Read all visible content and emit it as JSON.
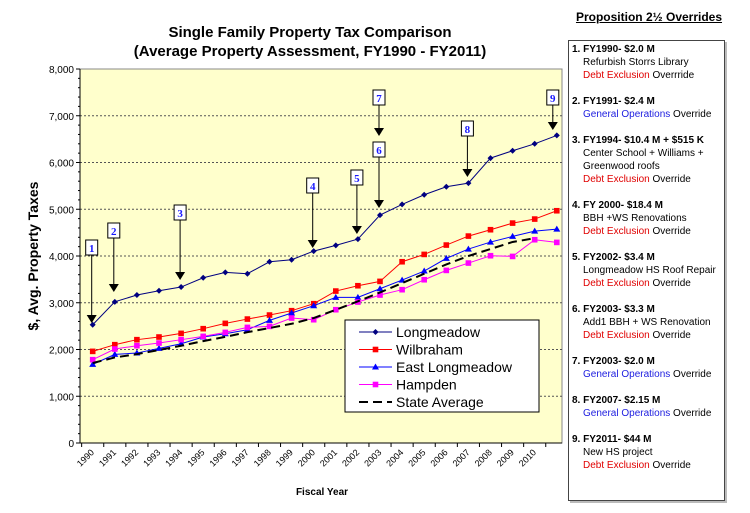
{
  "chart_data": {
    "type": "line",
    "title": "Single Family Property Tax Comparison",
    "subtitle": "(Average Property Assessment, FY1990 - FY2011)",
    "xlabel": "Fiscal Year",
    "ylabel": "$, Avg. Property Taxes",
    "ylim": [
      0,
      8000
    ],
    "yticks": [
      0,
      1000,
      2000,
      3000,
      4000,
      5000,
      6000,
      7000,
      8000
    ],
    "ytick_labels": [
      "0",
      "1,000",
      "2,000",
      "3,000",
      "4,000",
      "5,000",
      "6,000",
      "7,000",
      "8,000"
    ],
    "x": [
      1990,
      1991,
      1992,
      1993,
      1994,
      1995,
      1996,
      1997,
      1998,
      1999,
      2000,
      2001,
      2002,
      2003,
      2004,
      2005,
      2006,
      2007,
      2008,
      2009,
      2010,
      2011
    ],
    "xtick_labels": [
      "1990",
      "1991",
      "1992",
      "1993",
      "1994",
      "1995",
      "1996",
      "1997",
      "1998",
      "1999",
      "2000",
      "2001",
      "2002",
      "2003",
      "2004",
      "2005",
      "2006",
      "2007",
      "2008",
      "2009",
      "2010"
    ],
    "grid": "horizontal dotted",
    "legend_position": "bottom-right",
    "background_color": "#ffffcc",
    "series": [
      {
        "name": "Longmeadow",
        "color": "#000080",
        "marker": "diamond",
        "values": [
          2530,
          3020,
          3165,
          3257,
          3336,
          3535,
          3649,
          3621,
          3877,
          3920,
          4105,
          4227,
          4362,
          4875,
          5103,
          5310,
          5481,
          5559,
          6094,
          6251,
          6400,
          6579
        ]
      },
      {
        "name": "Wilbraham",
        "color": "#ff0000",
        "marker": "square",
        "values": [
          1960,
          2103,
          2210,
          2267,
          2345,
          2445,
          2559,
          2651,
          2737,
          2830,
          2980,
          3250,
          3364,
          3457,
          3877,
          4034,
          4234,
          4426,
          4562,
          4704,
          4790,
          4968
        ]
      },
      {
        "name": "East Longmeadow",
        "color": "#0000ff",
        "marker": "triangle",
        "values": [
          1682,
          1896,
          1924,
          2024,
          2124,
          2267,
          2338,
          2423,
          2623,
          2780,
          2937,
          3115,
          3115,
          3300,
          3485,
          3678,
          3949,
          4148,
          4298,
          4419,
          4533,
          4576
        ]
      },
      {
        "name": "Hampden",
        "color": "#ff00ff",
        "marker": "square",
        "values": [
          1782,
          2010,
          2081,
          2138,
          2210,
          2281,
          2366,
          2473,
          2495,
          2673,
          2637,
          2851,
          3015,
          3165,
          3279,
          3492,
          3692,
          3849,
          4006,
          3991,
          4348,
          4291
        ]
      },
      {
        "name": "State Average",
        "color": "#000000",
        "marker": "none",
        "dashed": true,
        "values": [
          1711,
          1830,
          1900,
          1990,
          2080,
          2180,
          2270,
          2370,
          2460,
          2550,
          2673,
          2850,
          3030,
          3220,
          3420,
          3620,
          3820,
          4000,
          4150,
          4300,
          4380,
          null
        ]
      }
    ],
    "annotations": [
      {
        "label": "1",
        "year": 1990
      },
      {
        "label": "2",
        "year": 1991
      },
      {
        "label": "3",
        "year": 1994
      },
      {
        "label": "4",
        "year": 2000
      },
      {
        "label": "5",
        "year": 2002
      },
      {
        "label": "6",
        "year": 2003
      },
      {
        "label": "7",
        "year": 2003
      },
      {
        "label": "8",
        "year": 2007
      },
      {
        "label": "9",
        "year": 2011
      }
    ]
  },
  "panel": {
    "title": "Proposition 2½ Overrides",
    "items": [
      {
        "head": "1. FY1990- $2.0 M",
        "lines": [
          "Refurbish Storrs Library"
        ],
        "type": "Debt Exclusion",
        "suffix": " Overrride",
        "color": "red"
      },
      {
        "head": "2. FY1991- $2.4 M",
        "lines": [],
        "type": "General Operations",
        "suffix": " Override",
        "color": "blue"
      },
      {
        "head": "3. FY1994- $10.4 M + $515 K",
        "lines": [
          "Center School + Williams +",
          "Greenwood roofs"
        ],
        "type": "Debt Exclusion",
        "suffix": " Override",
        "color": "red"
      },
      {
        "head": "4. FY 2000- $18.4 M",
        "lines": [
          "BBH +WS Renovations"
        ],
        "type": "Debt Exclusion",
        "suffix": " Override",
        "color": "red"
      },
      {
        "head": "5. FY2002- $3.4 M",
        "lines": [
          "Longmeadow HS Roof Repair"
        ],
        "type": "Debt Exclusion",
        "suffix": " Override",
        "color": "red"
      },
      {
        "head": "6. FY2003- $3.3 M",
        "lines": [
          "Add1 BBH + WS Renovation"
        ],
        "type": "Debt Exclusion",
        "suffix": " Override",
        "color": "red"
      },
      {
        "head": "7. FY2003- $2.0 M",
        "lines": [],
        "type": "General Operations",
        "suffix": " Override",
        "color": "blue"
      },
      {
        "head": "8. FY2007- $2.15 M",
        "lines": [],
        "type": "General Operations",
        "suffix": " Override",
        "color": "blue"
      },
      {
        "head": "9. FY2011- $44 M",
        "lines": [
          "New HS project"
        ],
        "type": "Debt Exclusion",
        "suffix": " Override",
        "color": "red"
      }
    ]
  }
}
